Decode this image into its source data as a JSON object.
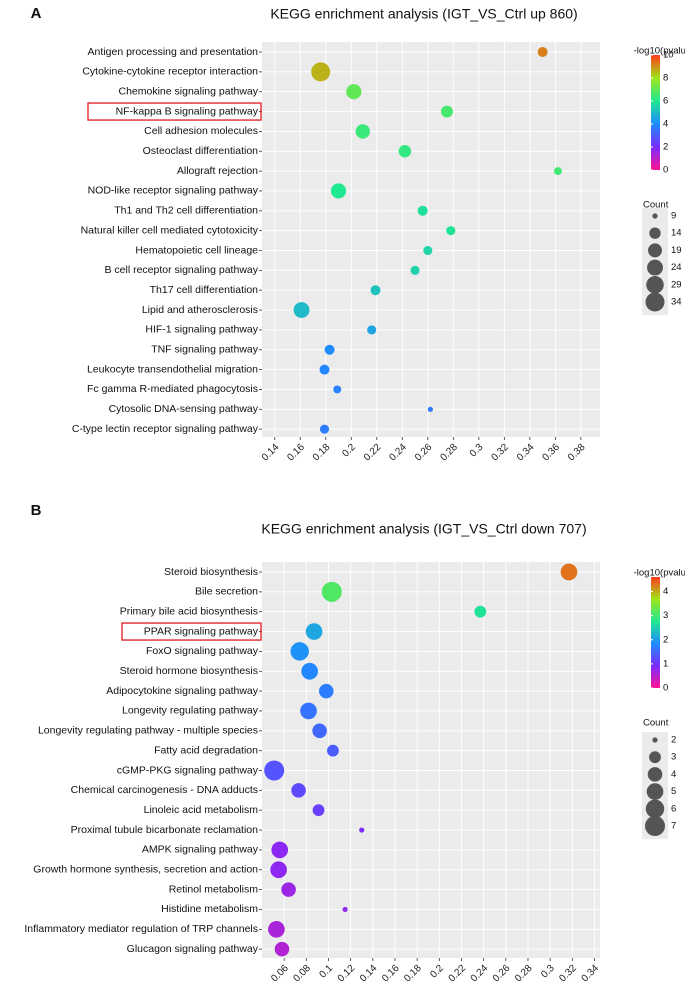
{
  "chart_data": [
    {
      "type": "scatter",
      "panel_label": "A",
      "title": "KEGG enrichment analysis (IGT_VS_Ctrl up 860)",
      "highlighted_term": "NF-kappa B signaling pathway",
      "xlim": [
        0.13,
        0.395
      ],
      "x_ticks": [
        0.14,
        0.16,
        0.18,
        0.2,
        0.22,
        0.24,
        0.26,
        0.28,
        0.3,
        0.32,
        0.34,
        0.36,
        0.38
      ],
      "x_tick_labels": [
        "0.14",
        "0.16",
        "0.18",
        "0.2",
        "0.22",
        "0.24",
        "0.26",
        "0.28",
        "0.3",
        "0.32",
        "0.34",
        "0.36",
        "0.38"
      ],
      "color_legend": {
        "title": "-log10(pvalue)",
        "range": [
          0,
          10
        ],
        "ticks": [
          0,
          2,
          4,
          6,
          8,
          10
        ],
        "tick_labels": [
          "0",
          "2",
          "4",
          "6",
          "8",
          "10"
        ]
      },
      "size_legend": {
        "title": "Count",
        "values": [
          9,
          14,
          19,
          24,
          29,
          34
        ],
        "labels": [
          "9",
          "14",
          "19",
          "24",
          "29",
          "34"
        ]
      },
      "terms": [
        {
          "term": "Antigen processing and presentation",
          "x": 0.35,
          "count": 12,
          "neglog10p": 9.2
        },
        {
          "term": "Cytokine-cytokine receptor interaction",
          "x": 0.176,
          "count": 34,
          "neglog10p": 8.6
        },
        {
          "term": "Chemokine signaling pathway",
          "x": 0.202,
          "count": 22,
          "neglog10p": 7.0
        },
        {
          "term": "NF-kappa B signaling pathway",
          "x": 0.275,
          "count": 15,
          "neglog10p": 6.6
        },
        {
          "term": "Cell adhesion molecules",
          "x": 0.209,
          "count": 20,
          "neglog10p": 6.4
        },
        {
          "term": "Osteoclast differentiation",
          "x": 0.242,
          "count": 16,
          "neglog10p": 6.3
        },
        {
          "term": "Allograft rejection",
          "x": 0.362,
          "count": 10,
          "neglog10p": 6.5
        },
        {
          "term": "NOD-like receptor signaling pathway",
          "x": 0.19,
          "count": 22,
          "neglog10p": 6.0
        },
        {
          "term": "Th1 and Th2 cell differentiation",
          "x": 0.256,
          "count": 12,
          "neglog10p": 5.8
        },
        {
          "term": "Natural killer cell mediated cytotoxicity",
          "x": 0.278,
          "count": 11,
          "neglog10p": 5.9
        },
        {
          "term": "Hematopoietic cell lineage",
          "x": 0.26,
          "count": 11,
          "neglog10p": 5.6
        },
        {
          "term": "B cell receptor signaling pathway",
          "x": 0.25,
          "count": 11,
          "neglog10p": 5.5
        },
        {
          "term": "Th17 cell differentiation",
          "x": 0.219,
          "count": 12,
          "neglog10p": 5.2
        },
        {
          "term": "Lipid and atherosclerosis",
          "x": 0.161,
          "count": 24,
          "neglog10p": 5.0
        },
        {
          "term": "HIF-1 signaling pathway",
          "x": 0.216,
          "count": 11,
          "neglog10p": 4.5
        },
        {
          "term": "TNF signaling pathway",
          "x": 0.183,
          "count": 12,
          "neglog10p": 4.0
        },
        {
          "term": "Leukocyte transendothelial migration",
          "x": 0.179,
          "count": 12,
          "neglog10p": 3.9
        },
        {
          "term": "Fc gamma R-mediated phagocytosis",
          "x": 0.189,
          "count": 10,
          "neglog10p": 3.8
        },
        {
          "term": "Cytosolic DNA-sensing pathway",
          "x": 0.262,
          "count": 8,
          "neglog10p": 3.6
        },
        {
          "term": "C-type lectin receptor signaling pathway",
          "x": 0.179,
          "count": 11,
          "neglog10p": 3.7
        }
      ]
    },
    {
      "type": "scatter",
      "panel_label": "B",
      "title": "KEGG enrichment analysis (IGT_VS_Ctrl down 707)",
      "highlighted_term": "PPAR signaling pathway",
      "xlim": [
        0.04,
        0.345
      ],
      "x_ticks": [
        0.06,
        0.08,
        0.1,
        0.12,
        0.14,
        0.16,
        0.18,
        0.2,
        0.22,
        0.24,
        0.26,
        0.28,
        0.3,
        0.32,
        0.34
      ],
      "x_tick_labels": [
        "0.06",
        "0.08",
        "0.1",
        "0.12",
        "0.14",
        "0.16",
        "0.18",
        "0.2",
        "0.22",
        "0.24",
        "0.26",
        "0.28",
        "0.3",
        "0.32",
        "0.34"
      ],
      "color_legend": {
        "title": "-log10(pvalue)",
        "range": [
          0,
          4.6
        ],
        "ticks": [
          0,
          1,
          2,
          3,
          4
        ],
        "tick_labels": [
          "0",
          "1",
          "2",
          "3",
          "4"
        ]
      },
      "size_legend": {
        "title": "Count",
        "values": [
          2,
          3,
          4,
          5,
          6,
          7
        ],
        "labels": [
          "2",
          "3",
          "4",
          "5",
          "6",
          "7"
        ]
      },
      "terms": [
        {
          "term": "Steroid biosynthesis",
          "x": 0.317,
          "count": 5,
          "neglog10p": 4.3
        },
        {
          "term": "Bile secretion",
          "x": 0.103,
          "count": 7,
          "neglog10p": 3.1
        },
        {
          "term": "Primary bile acid biosynthesis",
          "x": 0.237,
          "count": 3,
          "neglog10p": 2.7
        },
        {
          "term": "PPAR signaling pathway",
          "x": 0.087,
          "count": 5,
          "neglog10p": 2.1
        },
        {
          "term": "FoxO signaling pathway",
          "x": 0.074,
          "count": 6,
          "neglog10p": 1.9
        },
        {
          "term": "Steroid hormone biosynthesis",
          "x": 0.083,
          "count": 5,
          "neglog10p": 1.8
        },
        {
          "term": "Adipocytokine signaling pathway",
          "x": 0.098,
          "count": 4,
          "neglog10p": 1.7
        },
        {
          "term": "Longevity regulating pathway",
          "x": 0.082,
          "count": 5,
          "neglog10p": 1.6
        },
        {
          "term": "Longevity regulating pathway - multiple species",
          "x": 0.092,
          "count": 4,
          "neglog10p": 1.5
        },
        {
          "term": "Fatty acid degradation",
          "x": 0.104,
          "count": 3,
          "neglog10p": 1.4
        },
        {
          "term": "cGMP-PKG signaling pathway",
          "x": 0.051,
          "count": 7,
          "neglog10p": 1.3
        },
        {
          "term": "Chemical carcinogenesis - DNA adducts",
          "x": 0.073,
          "count": 4,
          "neglog10p": 1.2
        },
        {
          "term": "Linoleic acid metabolism",
          "x": 0.091,
          "count": 3,
          "neglog10p": 1.1
        },
        {
          "term": "Proximal tubule bicarbonate reclamation",
          "x": 0.13,
          "count": 2,
          "neglog10p": 0.9
        },
        {
          "term": "AMPK signaling pathway",
          "x": 0.056,
          "count": 5,
          "neglog10p": 0.8
        },
        {
          "term": "Growth hormone synthesis, secretion and action",
          "x": 0.055,
          "count": 5,
          "neglog10p": 0.8
        },
        {
          "term": "Retinol metabolism",
          "x": 0.064,
          "count": 4,
          "neglog10p": 0.7
        },
        {
          "term": "Histidine metabolism",
          "x": 0.115,
          "count": 2,
          "neglog10p": 0.75
        },
        {
          "term": "Inflammatory mediator regulation of TRP channels",
          "x": 0.053,
          "count": 5,
          "neglog10p": 0.6
        },
        {
          "term": "Glucagon signaling pathway",
          "x": 0.058,
          "count": 4,
          "neglog10p": 0.55
        }
      ]
    }
  ]
}
